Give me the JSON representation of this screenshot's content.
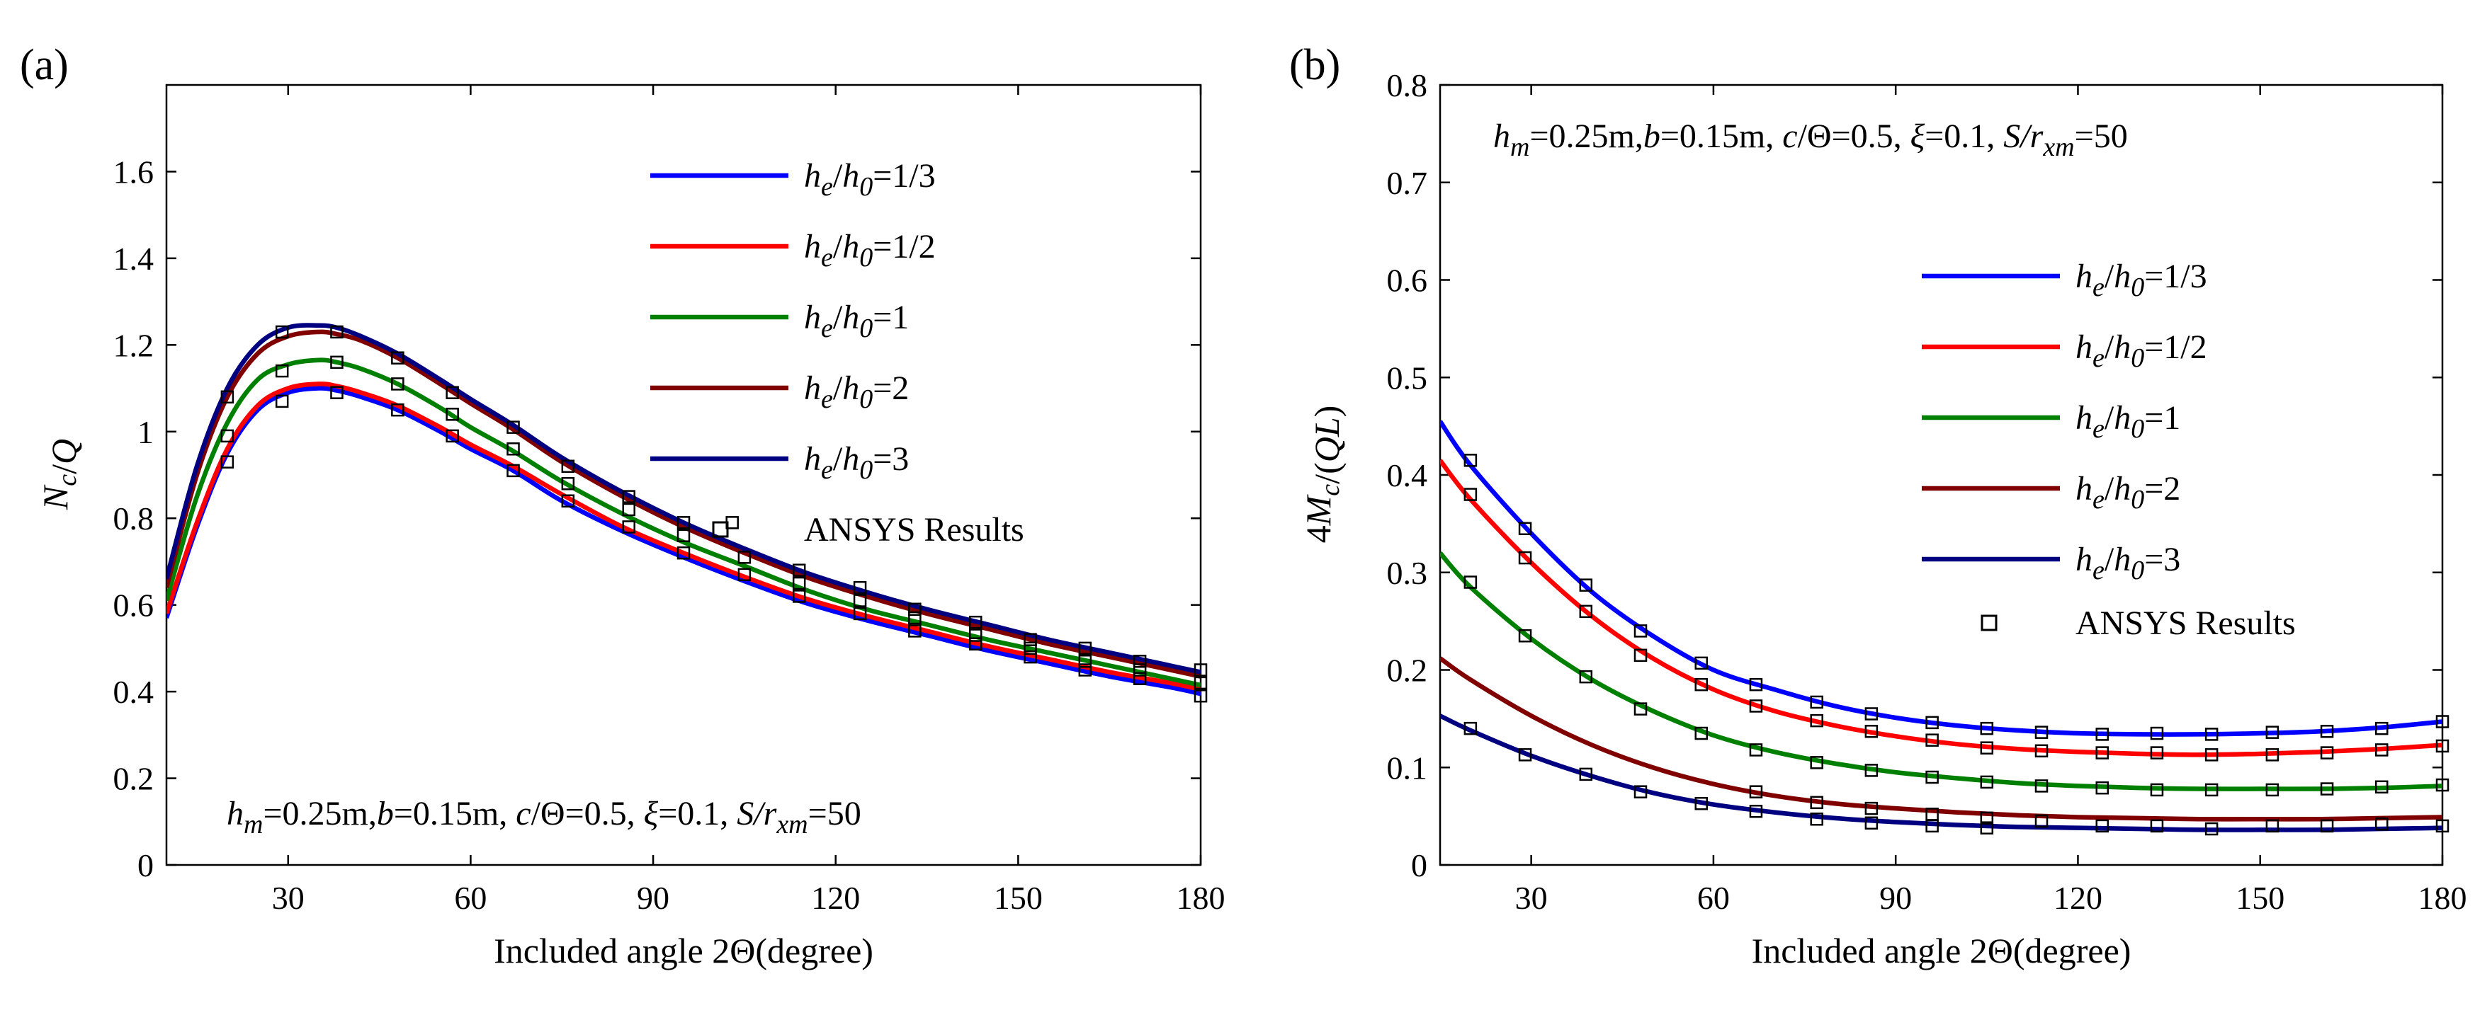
{
  "chart_data": [
    {
      "type": "line",
      "panel_label": "(a)",
      "xlabel": "Included angle 2Θ(degree)",
      "ylabel": {
        "main": "N",
        "sub": "c",
        "rest": "/Q"
      },
      "xlim": [
        10,
        180
      ],
      "ylim": [
        0,
        1.8
      ],
      "xticks": [
        30,
        60,
        90,
        120,
        150,
        180
      ],
      "yticks": [
        0,
        0.2,
        0.4,
        0.6,
        0.8,
        1,
        1.2,
        1.4,
        1.6
      ],
      "ytick_labels": [
        "0",
        "0.2",
        "0.4",
        "0.6",
        "0.8",
        "1",
        "1.2",
        "1.4",
        "1.6"
      ],
      "params_text": {
        "hm": "h",
        "hm_sub": "m",
        "hm_rest": "=0.25m,",
        "b": "b",
        "b_rest": "=0.15m, ",
        "c": "c",
        "c_rest": "/Θ=0.5, ",
        "xi": "ξ",
        "xi_rest": "=0.1, ",
        "s": "S/r",
        "s_sub": "xm",
        "s_rest": "=50"
      },
      "legend": [
        {
          "name": "he/h0=1/3",
          "sym": "h",
          "sub1": "e",
          "mid": "/h",
          "sub2": "0",
          "val": "=1/3",
          "color": "#0000ff"
        },
        {
          "name": "he/h0=1/2",
          "sym": "h",
          "sub1": "e",
          "mid": "/h",
          "sub2": "0",
          "val": "=1/2",
          "color": "#ff0000"
        },
        {
          "name": "he/h0=1",
          "sym": "h",
          "sub1": "e",
          "mid": "/h",
          "sub2": "0",
          "val": "=1",
          "color": "#008000"
        },
        {
          "name": "he/h0=2",
          "sym": "h",
          "sub1": "e",
          "mid": "/h",
          "sub2": "0",
          "val": "=2",
          "color": "#800000"
        },
        {
          "name": "he/h0=3",
          "sym": "h",
          "sub1": "e",
          "mid": "/h",
          "sub2": "0",
          "val": "=3",
          "color": "#000080"
        }
      ],
      "ansys_label": "ANSYS Results",
      "series": [
        {
          "name": "he/h0=1/3",
          "color": "#0000ff",
          "x": [
            10,
            15,
            20,
            25,
            30,
            35,
            38,
            42,
            48,
            55,
            60,
            67,
            75,
            85,
            95,
            105,
            115,
            125,
            135,
            145,
            155,
            165,
            175,
            180
          ],
          "y": [
            0.57,
            0.78,
            0.95,
            1.05,
            1.09,
            1.1,
            1.095,
            1.08,
            1.05,
            1.0,
            0.96,
            0.91,
            0.84,
            0.77,
            0.71,
            0.655,
            0.605,
            0.565,
            0.53,
            0.495,
            0.465,
            0.435,
            0.41,
            0.395
          ]
        },
        {
          "name": "he/h0=1/2",
          "color": "#ff0000",
          "x": [
            10,
            15,
            20,
            25,
            30,
            35,
            38,
            42,
            48,
            55,
            60,
            67,
            75,
            85,
            95,
            105,
            115,
            125,
            135,
            145,
            155,
            165,
            175,
            180
          ],
          "y": [
            0.58,
            0.79,
            0.96,
            1.06,
            1.1,
            1.11,
            1.105,
            1.09,
            1.06,
            1.01,
            0.97,
            0.92,
            0.855,
            0.78,
            0.72,
            0.665,
            0.615,
            0.575,
            0.54,
            0.505,
            0.475,
            0.445,
            0.42,
            0.405
          ]
        },
        {
          "name": "he/h0=1",
          "color": "#008000",
          "x": [
            10,
            15,
            20,
            25,
            30,
            35,
            38,
            42,
            48,
            55,
            60,
            67,
            75,
            85,
            95,
            105,
            115,
            125,
            135,
            145,
            155,
            165,
            175,
            180
          ],
          "y": [
            0.61,
            0.85,
            1.02,
            1.12,
            1.155,
            1.165,
            1.16,
            1.145,
            1.11,
            1.055,
            1.01,
            0.955,
            0.885,
            0.81,
            0.745,
            0.69,
            0.635,
            0.59,
            0.555,
            0.52,
            0.49,
            0.46,
            0.43,
            0.415
          ]
        },
        {
          "name": "he/h0=2",
          "color": "#800000",
          "x": [
            10,
            15,
            20,
            25,
            30,
            35,
            38,
            42,
            48,
            55,
            60,
            67,
            75,
            85,
            95,
            105,
            115,
            125,
            135,
            145,
            155,
            165,
            175,
            180
          ],
          "y": [
            0.64,
            0.9,
            1.08,
            1.18,
            1.22,
            1.23,
            1.225,
            1.21,
            1.17,
            1.11,
            1.065,
            1.005,
            0.93,
            0.85,
            0.78,
            0.72,
            0.665,
            0.62,
            0.58,
            0.545,
            0.51,
            0.48,
            0.45,
            0.435
          ]
        },
        {
          "name": "he/h0=3",
          "color": "#000080",
          "x": [
            10,
            15,
            20,
            25,
            30,
            35,
            38,
            42,
            48,
            55,
            60,
            67,
            75,
            85,
            95,
            105,
            115,
            125,
            135,
            145,
            155,
            165,
            175,
            180
          ],
          "y": [
            0.66,
            0.92,
            1.1,
            1.2,
            1.24,
            1.245,
            1.24,
            1.22,
            1.18,
            1.12,
            1.075,
            1.015,
            0.94,
            0.86,
            0.79,
            0.73,
            0.675,
            0.63,
            0.59,
            0.555,
            0.52,
            0.49,
            0.46,
            0.445
          ]
        }
      ],
      "ansys": {
        "x": [
          20,
          20,
          20,
          29,
          29,
          29,
          38,
          38,
          38,
          48,
          48,
          48,
          57,
          57,
          57,
          67,
          67,
          67,
          76,
          76,
          76,
          86,
          86,
          86,
          95,
          95,
          95,
          103,
          105,
          105,
          114,
          114,
          114,
          124,
          124,
          124,
          133,
          133,
          133,
          143,
          143,
          143,
          152,
          152,
          152,
          161,
          161,
          161,
          170,
          170,
          170,
          180,
          180,
          180
        ],
        "y": [
          0.93,
          0.99,
          1.08,
          1.07,
          1.14,
          1.23,
          1.09,
          1.16,
          1.23,
          1.05,
          1.11,
          1.17,
          0.99,
          1.04,
          1.09,
          0.91,
          0.96,
          1.01,
          0.84,
          0.88,
          0.92,
          0.78,
          0.82,
          0.85,
          0.72,
          0.76,
          0.79,
          0.79,
          0.67,
          0.71,
          0.62,
          0.65,
          0.68,
          0.58,
          0.61,
          0.64,
          0.54,
          0.57,
          0.59,
          0.51,
          0.53,
          0.56,
          0.48,
          0.5,
          0.52,
          0.45,
          0.47,
          0.5,
          0.43,
          0.45,
          0.47,
          0.39,
          0.42,
          0.45
        ]
      }
    },
    {
      "type": "line",
      "panel_label": "(b)",
      "xlabel": "Included angle 2Θ(degree)",
      "ylabel": {
        "main": "4M",
        "sub": "c",
        "rest": "/(QL)"
      },
      "xlim": [
        15,
        180
      ],
      "ylim": [
        0,
        0.8
      ],
      "xticks": [
        30,
        60,
        90,
        120,
        150,
        180
      ],
      "yticks": [
        0,
        0.1,
        0.2,
        0.3,
        0.4,
        0.5,
        0.6,
        0.7,
        0.8
      ],
      "ytick_labels": [
        "0",
        "0.1",
        "0.2",
        "0.3",
        "0.4",
        "0.5",
        "0.6",
        "0.7",
        "0.8"
      ],
      "params_text": {
        "hm": "h",
        "hm_sub": "m",
        "hm_rest": "=0.25m,",
        "b": "b",
        "b_rest": "=0.15m, ",
        "c": "c",
        "c_rest": "/Θ=0.5, ",
        "xi": "ξ",
        "xi_rest": "=0.1, ",
        "s": "S/r",
        "s_sub": "xm",
        "s_rest": "=50"
      },
      "legend": [
        {
          "name": "he/h0=1/3",
          "sym": "h",
          "sub1": "e",
          "mid": "/h",
          "sub2": "0",
          "val": "=1/3",
          "color": "#0000ff"
        },
        {
          "name": "he/h0=1/2",
          "sym": "h",
          "sub1": "e",
          "mid": "/h",
          "sub2": "0",
          "val": "=1/2",
          "color": "#ff0000"
        },
        {
          "name": "he/h0=1",
          "sym": "h",
          "sub1": "e",
          "mid": "/h",
          "sub2": "0",
          "val": "=1",
          "color": "#008000"
        },
        {
          "name": "he/h0=2",
          "sym": "h",
          "sub1": "e",
          "mid": "/h",
          "sub2": "0",
          "val": "=2",
          "color": "#800000"
        },
        {
          "name": "he/h0=3",
          "sym": "h",
          "sub1": "e",
          "mid": "/h",
          "sub2": "0",
          "val": "=3",
          "color": "#000080"
        }
      ],
      "ansys_label": "ANSYS Results",
      "series": [
        {
          "name": "he/h0=1/3",
          "color": "#0000ff",
          "x": [
            15,
            20,
            30,
            40,
            50,
            60,
            70,
            80,
            90,
            100,
            110,
            120,
            130,
            140,
            150,
            160,
            170,
            180
          ],
          "y": [
            0.455,
            0.41,
            0.34,
            0.28,
            0.235,
            0.2,
            0.18,
            0.163,
            0.151,
            0.143,
            0.138,
            0.135,
            0.134,
            0.134,
            0.135,
            0.137,
            0.141,
            0.147
          ]
        },
        {
          "name": "he/h0=1/2",
          "color": "#ff0000",
          "x": [
            15,
            20,
            30,
            40,
            50,
            60,
            70,
            80,
            90,
            100,
            110,
            120,
            130,
            140,
            150,
            160,
            170,
            180
          ],
          "y": [
            0.415,
            0.375,
            0.31,
            0.255,
            0.212,
            0.18,
            0.158,
            0.143,
            0.132,
            0.124,
            0.119,
            0.116,
            0.114,
            0.113,
            0.114,
            0.116,
            0.119,
            0.123
          ]
        },
        {
          "name": "he/h0=1",
          "color": "#008000",
          "x": [
            15,
            20,
            30,
            40,
            50,
            60,
            70,
            80,
            90,
            100,
            110,
            120,
            130,
            140,
            150,
            160,
            170,
            180
          ],
          "y": [
            0.32,
            0.285,
            0.232,
            0.19,
            0.158,
            0.133,
            0.116,
            0.104,
            0.095,
            0.089,
            0.084,
            0.081,
            0.079,
            0.078,
            0.078,
            0.078,
            0.079,
            0.081
          ]
        },
        {
          "name": "he/h0=2",
          "color": "#800000",
          "x": [
            15,
            20,
            30,
            40,
            50,
            60,
            70,
            80,
            90,
            100,
            110,
            120,
            130,
            140,
            150,
            160,
            170,
            180
          ],
          "y": [
            0.212,
            0.19,
            0.153,
            0.123,
            0.1,
            0.083,
            0.071,
            0.063,
            0.058,
            0.054,
            0.051,
            0.049,
            0.048,
            0.047,
            0.047,
            0.047,
            0.048,
            0.049
          ]
        },
        {
          "name": "he/h0=3",
          "color": "#000080",
          "x": [
            15,
            20,
            30,
            40,
            50,
            60,
            70,
            80,
            90,
            100,
            110,
            120,
            130,
            140,
            150,
            160,
            170,
            180
          ],
          "y": [
            0.153,
            0.138,
            0.112,
            0.091,
            0.074,
            0.062,
            0.054,
            0.048,
            0.044,
            0.041,
            0.039,
            0.038,
            0.037,
            0.036,
            0.036,
            0.036,
            0.037,
            0.038
          ]
        }
      ],
      "ansys": {
        "x": [
          20,
          20,
          20,
          20,
          29,
          29,
          29,
          29,
          39,
          39,
          39,
          39,
          48,
          48,
          48,
          48,
          58,
          58,
          58,
          58,
          67,
          67,
          67,
          67,
          67,
          77,
          77,
          77,
          77,
          77,
          86,
          86,
          86,
          86,
          86,
          96,
          96,
          96,
          96,
          96,
          105,
          105,
          105,
          105,
          105,
          114,
          114,
          114,
          114,
          124,
          124,
          124,
          124,
          133,
          133,
          133,
          133,
          142,
          142,
          142,
          142,
          152,
          152,
          152,
          152,
          161,
          161,
          161,
          161,
          170,
          170,
          170,
          170,
          180,
          180,
          180,
          180
        ],
        "y": [
          0.415,
          0.38,
          0.29,
          0.14,
          0.345,
          0.315,
          0.235,
          0.113,
          0.287,
          0.26,
          0.193,
          0.093,
          0.24,
          0.215,
          0.16,
          0.075,
          0.207,
          0.185,
          0.135,
          0.063,
          0.185,
          0.163,
          0.118,
          0.075,
          0.055,
          0.167,
          0.148,
          0.105,
          0.064,
          0.047,
          0.155,
          0.137,
          0.097,
          0.058,
          0.043,
          0.146,
          0.128,
          0.09,
          0.052,
          0.04,
          0.14,
          0.12,
          0.085,
          0.048,
          0.038,
          0.136,
          0.117,
          0.081,
          0.045,
          0.134,
          0.115,
          0.079,
          0.04,
          0.135,
          0.115,
          0.077,
          0.04,
          0.134,
          0.113,
          0.077,
          0.037,
          0.136,
          0.113,
          0.077,
          0.04,
          0.137,
          0.115,
          0.078,
          0.04,
          0.14,
          0.118,
          0.08,
          0.042,
          0.147,
          0.122,
          0.082,
          0.04
        ]
      }
    }
  ]
}
